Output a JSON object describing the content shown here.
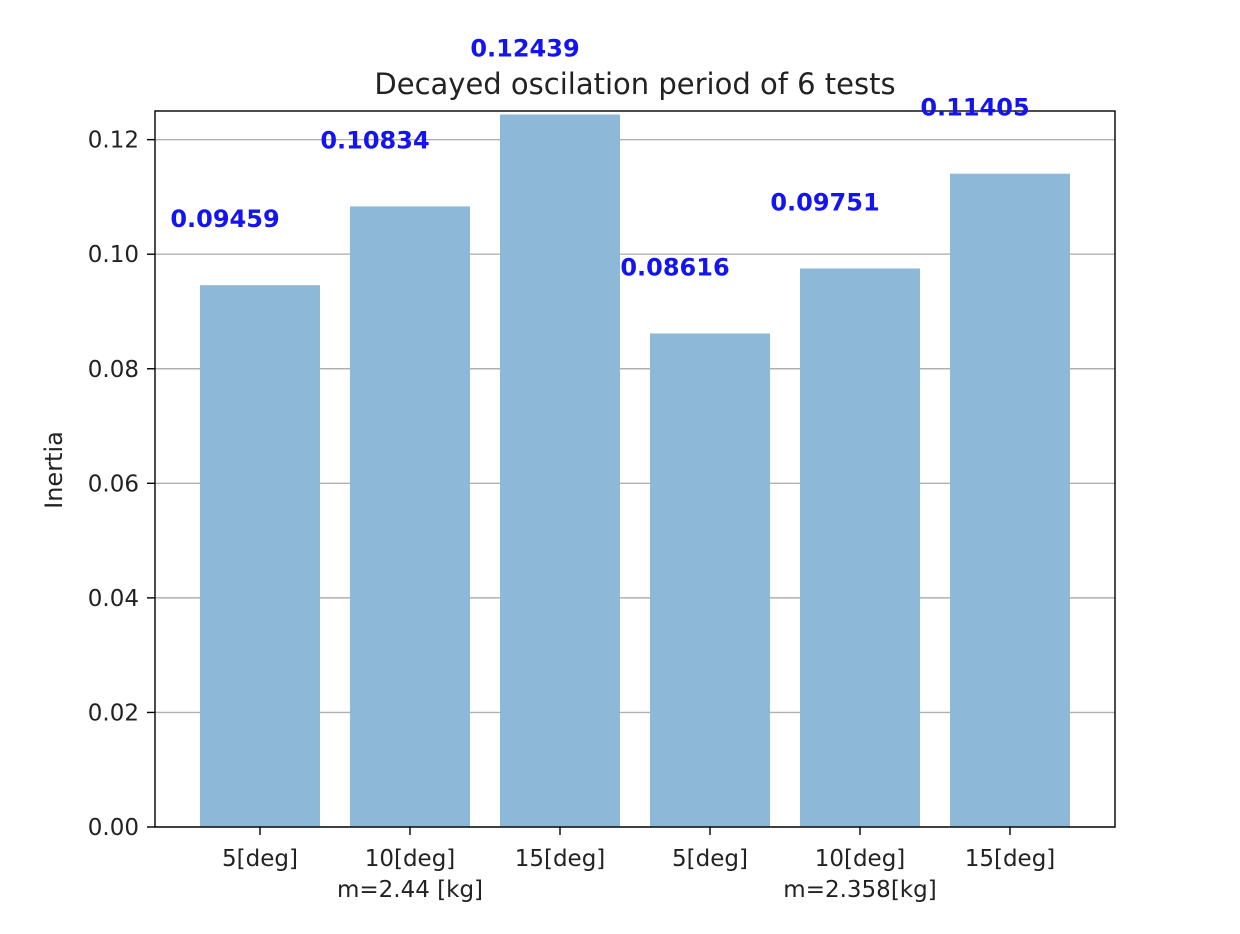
{
  "chart_data": {
    "type": "bar",
    "title": "Decayed oscilation period of 6 tests",
    "xlabel": "",
    "ylabel": "Inertia",
    "ylim": [
      0,
      0.125
    ],
    "yticks": [
      "0.00",
      "0.02",
      "0.04",
      "0.06",
      "0.08",
      "0.10",
      "0.12"
    ],
    "categories": [
      "5[deg]",
      "10[deg]",
      "15[deg]",
      "5[deg]",
      "10[deg]",
      "15[deg]"
    ],
    "values": [
      0.09459,
      0.10834,
      0.12439,
      0.08616,
      0.09751,
      0.11405
    ],
    "data_labels": [
      "0.09459",
      "0.10834",
      "0.12439",
      "0.08616",
      "0.09751",
      "0.11405"
    ],
    "group_labels": [
      "m=2.44 [kg]",
      "m=2.358[kg]"
    ],
    "grid": "y",
    "colors": {
      "bar": "#8db8d8",
      "label": "#1414f0",
      "grid": "#b0b0b0",
      "axis": "#000000",
      "text": "#222222"
    }
  }
}
